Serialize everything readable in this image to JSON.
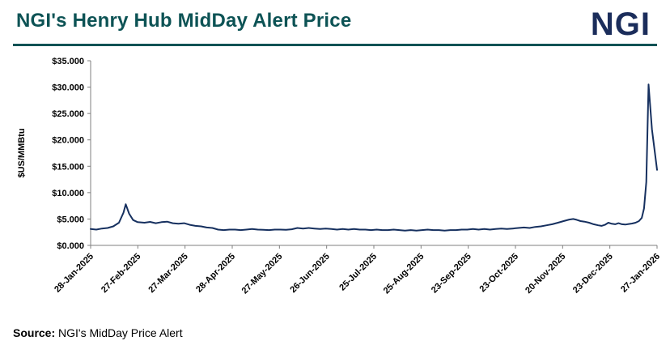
{
  "header": {
    "title": "NGI's Henry Hub MidDay Alert Price",
    "logo_text": "NGI"
  },
  "footer": {
    "source_label": "Source:",
    "source_text": " NGI's MidDay Price Alert"
  },
  "colors": {
    "title_teal": "#0d5355",
    "divider_teal": "#0d5355",
    "logo_navy": "#1b2d5b",
    "line_navy": "#16305f",
    "axis_gray": "#7f7f7f"
  },
  "chart_data": {
    "type": "line",
    "title": "NGI's Henry Hub MidDay Alert Price",
    "xlabel": "",
    "ylabel": "$US/MMBtu",
    "ylim": [
      0,
      35
    ],
    "grid": false,
    "legend": "none",
    "line_color": "#16305f",
    "y_tick_values": [
      0,
      5,
      10,
      15,
      20,
      25,
      30,
      35
    ],
    "y_tick_labels": [
      "$0.000",
      "$5.000",
      "$10.000",
      "$15.000",
      "$20.000",
      "$25.000",
      "$30.000",
      "$35.000"
    ],
    "x_tick_labels": [
      "28-Jan-2025",
      "27-Feb-2025",
      "27-Mar-2025",
      "28-Apr-2025",
      "27-May-2025",
      "26-Jun-2025",
      "25-Jul-2025",
      "25-Aug-2025",
      "23-Sep-2025",
      "23-Oct-2025",
      "20-Nov-2025",
      "23-Dec-2025",
      "27-Jan-2026"
    ],
    "series": [
      {
        "name": "Henry Hub MidDay Alert Price",
        "points": [
          [
            0.0,
            3.1
          ],
          [
            0.01,
            3.0
          ],
          [
            0.02,
            3.2
          ],
          [
            0.03,
            3.3
          ],
          [
            0.04,
            3.6
          ],
          [
            0.05,
            4.3
          ],
          [
            0.058,
            6.2
          ],
          [
            0.062,
            7.8
          ],
          [
            0.068,
            6.0
          ],
          [
            0.075,
            4.8
          ],
          [
            0.083,
            4.4
          ],
          [
            0.095,
            4.3
          ],
          [
            0.105,
            4.45
          ],
          [
            0.115,
            4.2
          ],
          [
            0.125,
            4.4
          ],
          [
            0.135,
            4.5
          ],
          [
            0.145,
            4.2
          ],
          [
            0.155,
            4.1
          ],
          [
            0.165,
            4.2
          ],
          [
            0.175,
            3.9
          ],
          [
            0.185,
            3.7
          ],
          [
            0.195,
            3.6
          ],
          [
            0.205,
            3.4
          ],
          [
            0.215,
            3.3
          ],
          [
            0.225,
            3.0
          ],
          [
            0.235,
            2.9
          ],
          [
            0.245,
            3.0
          ],
          [
            0.255,
            3.0
          ],
          [
            0.265,
            2.9
          ],
          [
            0.275,
            3.0
          ],
          [
            0.285,
            3.1
          ],
          [
            0.295,
            3.0
          ],
          [
            0.305,
            2.95
          ],
          [
            0.315,
            2.9
          ],
          [
            0.325,
            3.0
          ],
          [
            0.335,
            3.0
          ],
          [
            0.345,
            2.95
          ],
          [
            0.355,
            3.05
          ],
          [
            0.365,
            3.3
          ],
          [
            0.375,
            3.2
          ],
          [
            0.385,
            3.3
          ],
          [
            0.395,
            3.2
          ],
          [
            0.405,
            3.1
          ],
          [
            0.415,
            3.2
          ],
          [
            0.425,
            3.1
          ],
          [
            0.435,
            3.0
          ],
          [
            0.445,
            3.1
          ],
          [
            0.455,
            3.0
          ],
          [
            0.465,
            3.1
          ],
          [
            0.475,
            3.0
          ],
          [
            0.485,
            3.0
          ],
          [
            0.495,
            2.9
          ],
          [
            0.505,
            3.0
          ],
          [
            0.515,
            2.9
          ],
          [
            0.525,
            2.9
          ],
          [
            0.535,
            3.0
          ],
          [
            0.545,
            2.9
          ],
          [
            0.555,
            2.8
          ],
          [
            0.565,
            2.9
          ],
          [
            0.575,
            2.8
          ],
          [
            0.585,
            2.9
          ],
          [
            0.595,
            3.0
          ],
          [
            0.605,
            2.9
          ],
          [
            0.615,
            2.9
          ],
          [
            0.625,
            2.8
          ],
          [
            0.635,
            2.9
          ],
          [
            0.645,
            2.9
          ],
          [
            0.655,
            3.0
          ],
          [
            0.665,
            3.0
          ],
          [
            0.675,
            3.1
          ],
          [
            0.685,
            3.0
          ],
          [
            0.695,
            3.1
          ],
          [
            0.705,
            3.0
          ],
          [
            0.715,
            3.1
          ],
          [
            0.725,
            3.2
          ],
          [
            0.735,
            3.1
          ],
          [
            0.745,
            3.2
          ],
          [
            0.755,
            3.3
          ],
          [
            0.765,
            3.4
          ],
          [
            0.775,
            3.3
          ],
          [
            0.785,
            3.5
          ],
          [
            0.795,
            3.6
          ],
          [
            0.805,
            3.8
          ],
          [
            0.815,
            4.0
          ],
          [
            0.825,
            4.3
          ],
          [
            0.835,
            4.6
          ],
          [
            0.845,
            4.9
          ],
          [
            0.852,
            5.0
          ],
          [
            0.858,
            4.85
          ],
          [
            0.865,
            4.6
          ],
          [
            0.872,
            4.5
          ],
          [
            0.88,
            4.3
          ],
          [
            0.888,
            4.0
          ],
          [
            0.896,
            3.8
          ],
          [
            0.902,
            3.7
          ],
          [
            0.908,
            3.9
          ],
          [
            0.914,
            4.3
          ],
          [
            0.92,
            4.1
          ],
          [
            0.926,
            4.0
          ],
          [
            0.932,
            4.2
          ],
          [
            0.938,
            4.0
          ],
          [
            0.944,
            3.95
          ],
          [
            0.95,
            4.05
          ],
          [
            0.956,
            4.15
          ],
          [
            0.962,
            4.3
          ],
          [
            0.968,
            4.6
          ],
          [
            0.973,
            5.2
          ],
          [
            0.977,
            7.0
          ],
          [
            0.981,
            12.0
          ],
          [
            0.985,
            30.5
          ],
          [
            0.991,
            22.0
          ],
          [
            1.0,
            14.3
          ]
        ]
      }
    ]
  }
}
